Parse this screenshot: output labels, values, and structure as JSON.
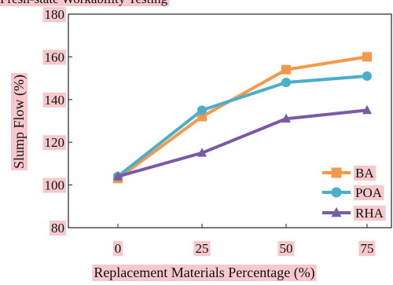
{
  "chart_data": {
    "type": "line",
    "title": "Fresh-state Workability Testing",
    "xlabel": "Replacement Materials Percentage (%)",
    "ylabel": "Slump Flow (%)",
    "categories": [
      "0",
      "25",
      "50",
      "75"
    ],
    "ylim": [
      80,
      180
    ],
    "yticks": [
      80,
      100,
      120,
      140,
      160,
      180
    ],
    "grid": false,
    "legend_position": "bottom-right",
    "series": [
      {
        "name": "BA",
        "color": "#f5984a",
        "marker": "square",
        "values": [
          103,
          132,
          154,
          160
        ]
      },
      {
        "name": "POA",
        "color": "#4aafc8",
        "marker": "circle",
        "values": [
          104,
          135,
          148,
          151
        ]
      },
      {
        "name": "RHA",
        "color": "#7a5aa6",
        "marker": "triangle",
        "values": [
          104,
          115,
          131,
          135
        ]
      }
    ]
  },
  "colors": {
    "label_highlight": "#f7c9cc",
    "axis": "#222222"
  }
}
